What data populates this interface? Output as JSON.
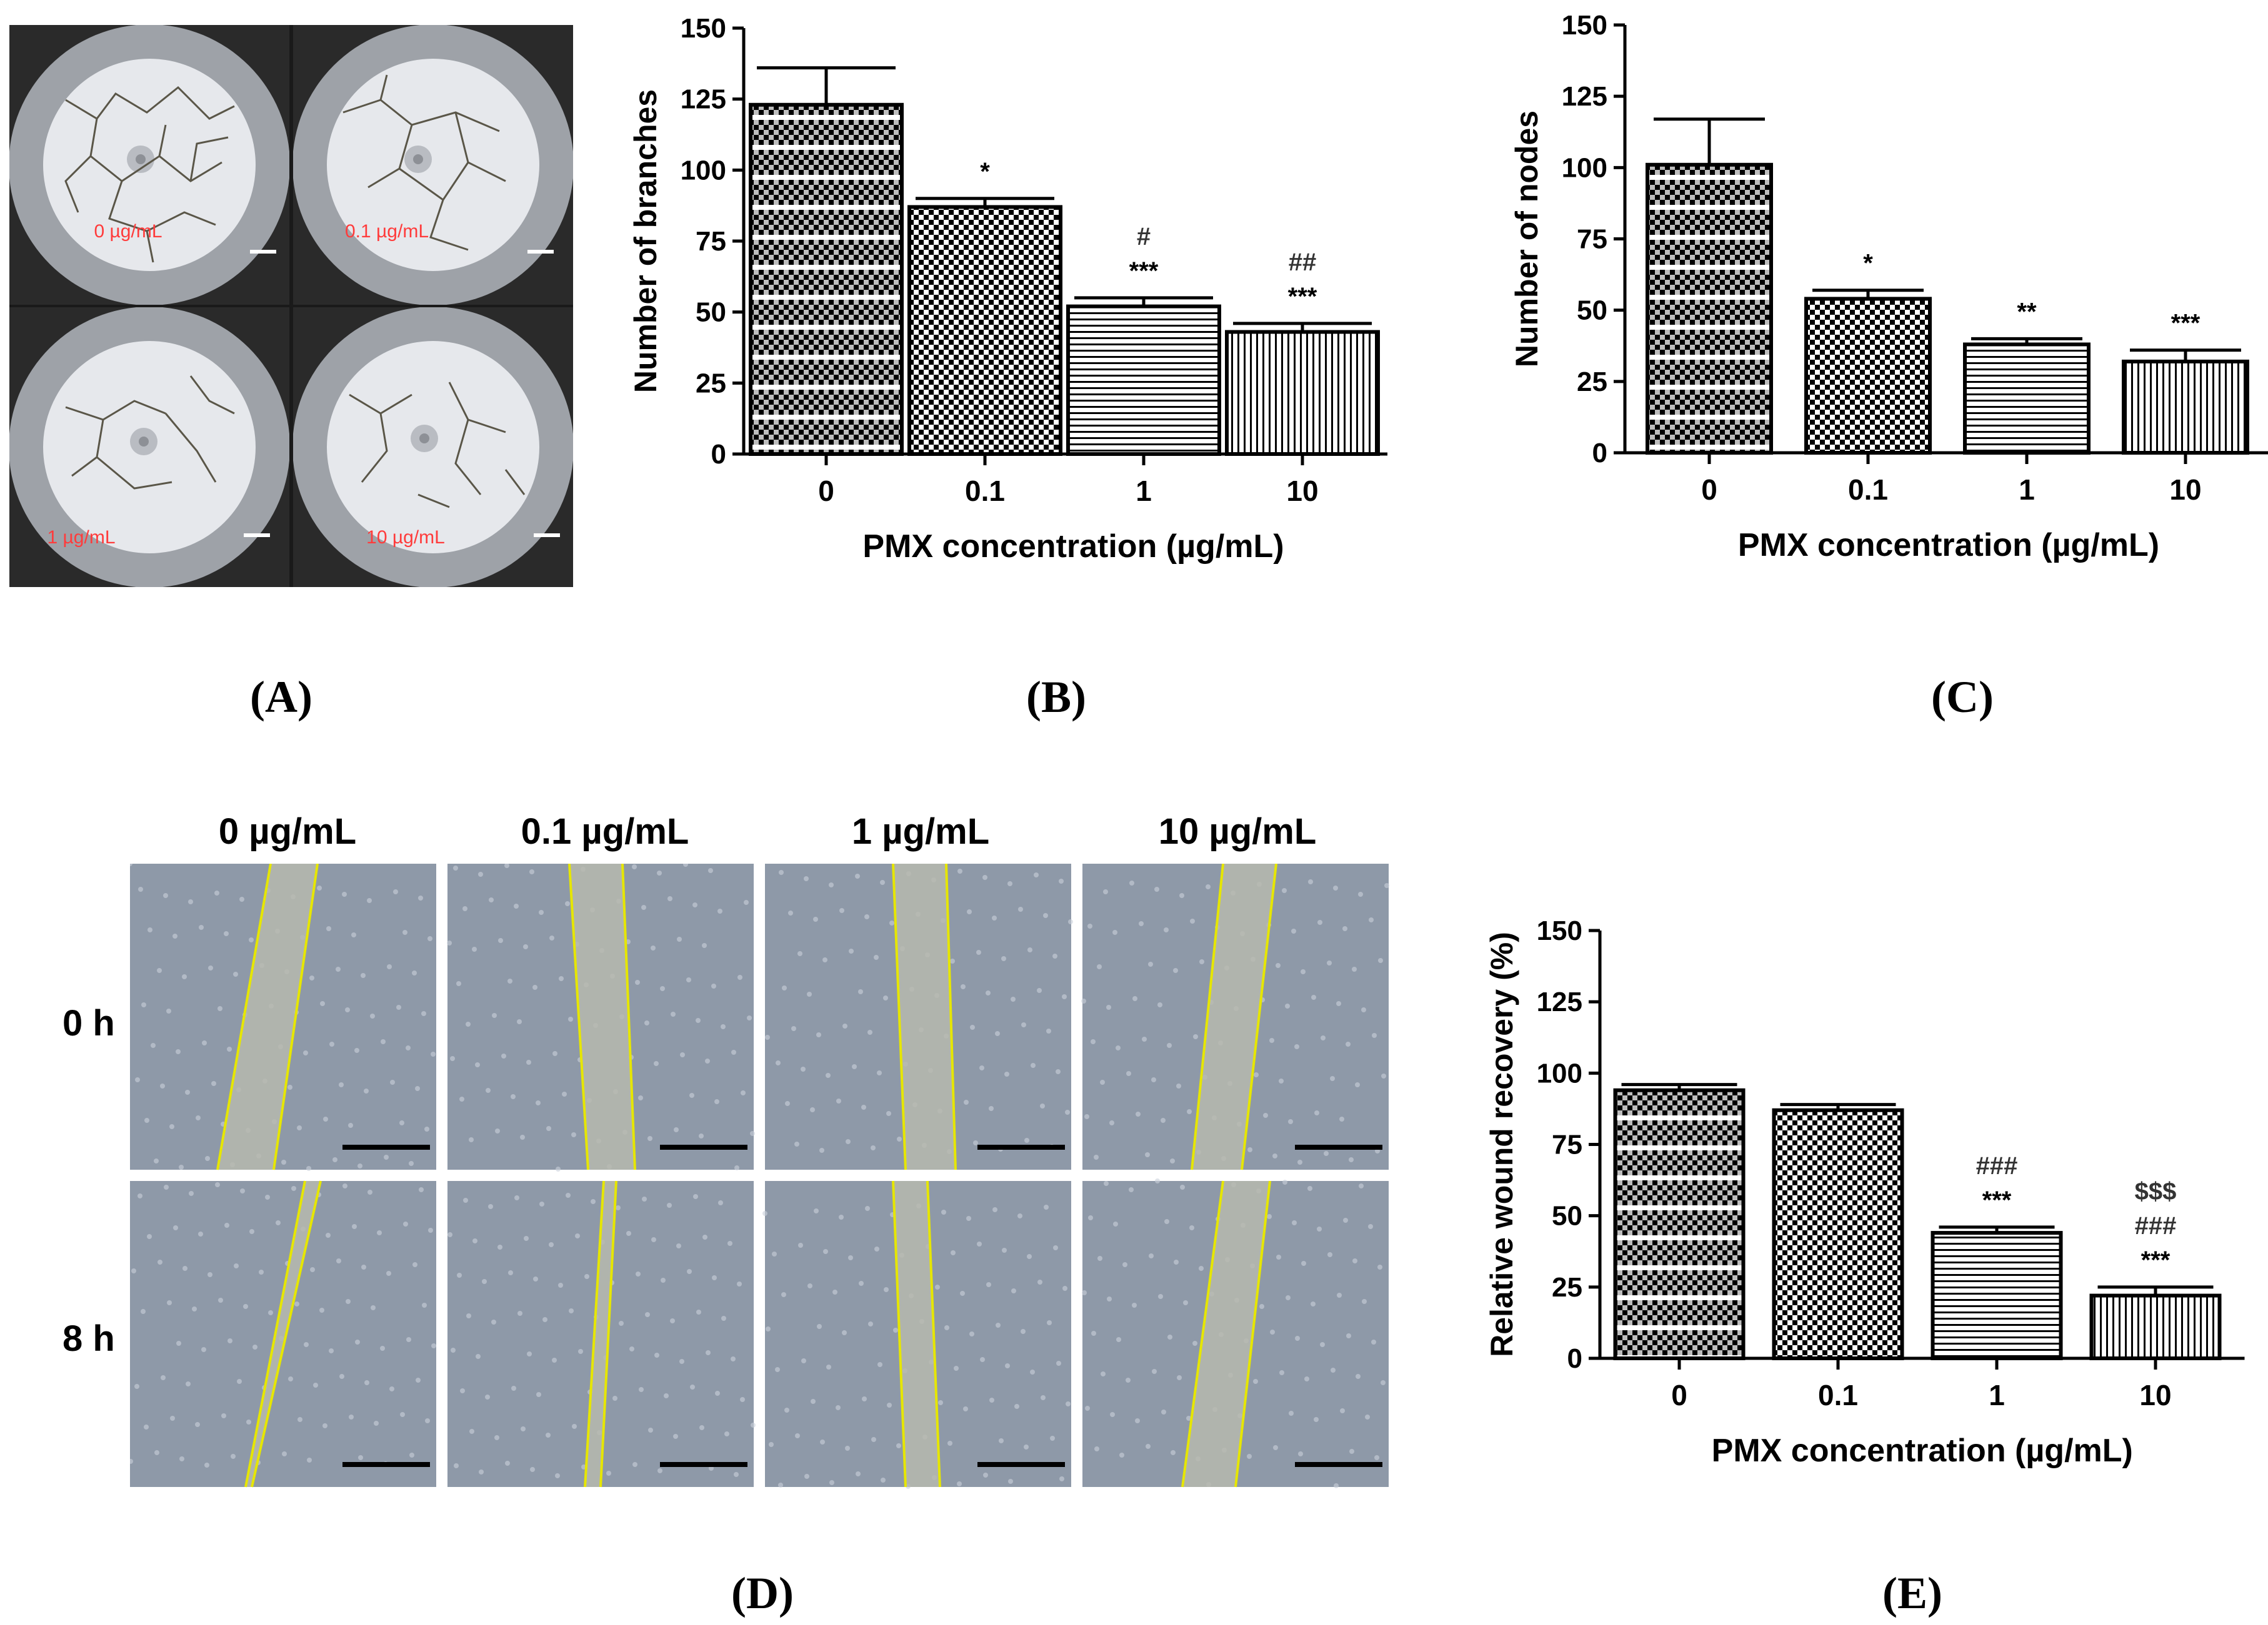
{
  "panels": {
    "A": {
      "label": "(A)",
      "images": [
        {
          "caption": "0 µg/mL"
        },
        {
          "caption": "0.1 µg/mL"
        },
        {
          "caption": "1 µg/mL"
        },
        {
          "caption": "10 µg/mL"
        }
      ]
    },
    "B": {
      "label": "(B)"
    },
    "C": {
      "label": "(C)"
    },
    "D": {
      "label": "(D)",
      "columns": [
        "0 µg/mL",
        "0.1 µg/mL",
        "1 µg/mL",
        "10 µg/mL"
      ],
      "rows": [
        "0 h",
        "8 h"
      ]
    },
    "E": {
      "label": "(E)"
    }
  },
  "colors": {
    "wound_line": "#e6e600",
    "scratch_bg": "#a7b0bd",
    "scale_bar": "#000000"
  },
  "chart_data": [
    {
      "panel": "B",
      "type": "bar",
      "categories": [
        "0",
        "0.1",
        "1",
        "10"
      ],
      "values": [
        123,
        87,
        52,
        43
      ],
      "errors": [
        13,
        3,
        3,
        3
      ],
      "annotations": [
        [],
        [
          "*"
        ],
        [
          "#",
          "***"
        ],
        [
          "##",
          "***"
        ]
      ],
      "patterns": [
        "checker-stripe",
        "checker",
        "hstripe",
        "vstripe"
      ],
      "xlabel": "PMX concentration (µg/mL)",
      "ylabel": "Number of branches",
      "yticks": [
        "0",
        "25",
        "50",
        "75",
        "100",
        "125",
        "150"
      ],
      "ylim": [
        0,
        150
      ]
    },
    {
      "panel": "C",
      "type": "bar",
      "categories": [
        "0",
        "0.1",
        "1",
        "10"
      ],
      "values": [
        101,
        54,
        38,
        32
      ],
      "errors": [
        16,
        3,
        2,
        4
      ],
      "annotations": [
        [],
        [
          "*"
        ],
        [
          "**"
        ],
        [
          "***"
        ]
      ],
      "patterns": [
        "checker-stripe",
        "checker",
        "hstripe",
        "vstripe"
      ],
      "xlabel": "PMX concentration (µg/mL)",
      "ylabel": "Number of nodes",
      "yticks": [
        "0",
        "25",
        "50",
        "75",
        "100",
        "125",
        "150"
      ],
      "ylim": [
        0,
        150
      ]
    },
    {
      "panel": "E",
      "type": "bar",
      "categories": [
        "0",
        "0.1",
        "1",
        "10"
      ],
      "values": [
        94,
        87,
        44,
        22
      ],
      "errors": [
        2,
        2,
        2,
        3
      ],
      "annotations": [
        [],
        [],
        [
          "###",
          "***"
        ],
        [
          "$$$",
          "###",
          "***"
        ]
      ],
      "patterns": [
        "checker-stripe",
        "checker",
        "hstripe",
        "vstripe"
      ],
      "xlabel": "PMX concentration (µg/mL)",
      "ylabel": "Relative wound recovery (%)",
      "yticks": [
        "0",
        "25",
        "50",
        "75",
        "100",
        "125",
        "150"
      ],
      "ylim": [
        0,
        150
      ]
    }
  ]
}
